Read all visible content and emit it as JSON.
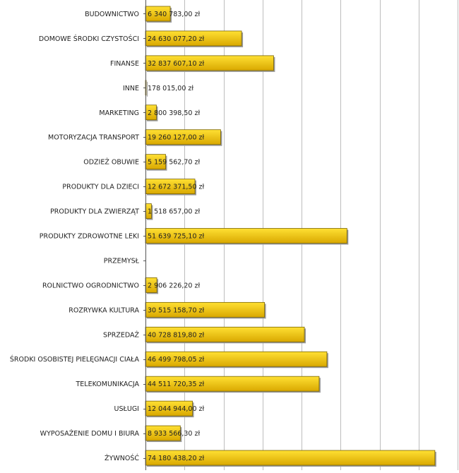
{
  "chart_data": {
    "type": "bar",
    "orientation": "horizontal",
    "title": "",
    "xlabel": "",
    "ylabel": "",
    "xlim": [
      0,
      80000000
    ],
    "grid": true,
    "currency_suffix": "zł",
    "colors": {
      "bar_top": "#FFE033",
      "bar_bottom": "#D9A800",
      "bar_border": "#7A6400"
    },
    "categories": [
      "BUDOWNICTWO",
      "DOMOWE ŚRODKI CZYSTOŚCI",
      "FINANSE",
      "INNE",
      "MARKETING",
      "MOTORYZACJA TRANSPORT",
      "ODZIEŻ OBUWIE",
      "PRODUKTY DLA DZIECI",
      "PRODUKTY DLA ZWIERZĄT",
      "PRODUKTY ZDROWOTNE LEKI",
      "PRZEMYSŁ",
      "ROLNICTWO OGRODNICTWO",
      "ROZRYWKA KULTURA",
      "SPRZEDAŻ",
      "ŚRODKI OSOBISTEJ PIELĘGNACJI CIAŁA",
      "TELEKOMUNIKACJA",
      "USŁUGI",
      "WYPOSAŻENIE DOMU I BIURA",
      "ŻYWNOŚĆ"
    ],
    "values": [
      6340783.0,
      24630077.2,
      32837607.1,
      178015.0,
      2800398.5,
      19260127.0,
      5159562.7,
      12672371.5,
      1518657.0,
      51639725.1,
      0,
      2906226.2,
      30515158.7,
      40728819.8,
      46499798.05,
      44511720.35,
      12044944.0,
      8933566.3,
      74180438.2
    ],
    "value_labels": [
      "6 340 783,00 zł",
      "24 630 077,20 zł",
      "32 837 607,10 zł",
      "178 015,00 zł",
      "2 800 398,50 zł",
      "19 260 127,00 zł",
      "5 159 562,70 zł",
      "12 672 371,50 zł",
      "1 518 657,00 zł",
      "51 639 725,10 zł",
      "",
      "2 906 226,20 zł",
      "30 515 158,70 zł",
      "40 728 819,80 zł",
      "46 499 798,05 zł",
      "44 511 720,35 zł",
      "12 044 944,00 zł",
      "8 933 566,30 zł",
      "74 180 438,20 zł"
    ]
  }
}
